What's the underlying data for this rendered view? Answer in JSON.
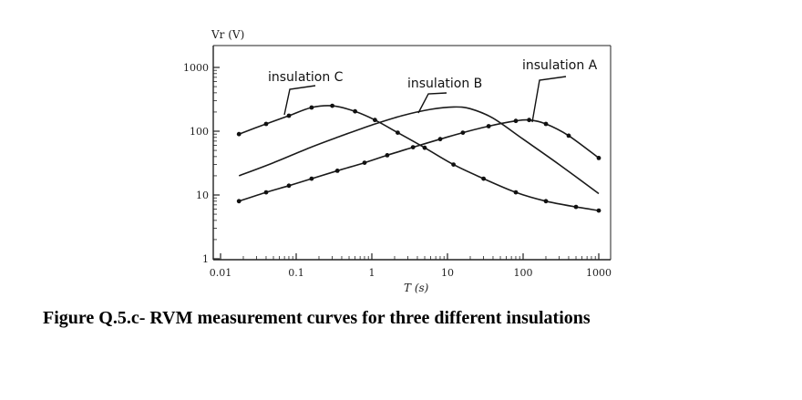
{
  "caption": "Figure  Q.5.c- RVM measurement  curves for three different insulations",
  "chart_data": {
    "type": "line",
    "xlabel": "T (s)",
    "ylabel": "Vr (V)",
    "xscale": "log",
    "yscale": "log",
    "xlim": [
      0.01,
      1000
    ],
    "ylim": [
      1,
      1000
    ],
    "xticks": [
      {
        "value": 0.01,
        "label": "0.01"
      },
      {
        "value": 0.1,
        "label": "0.1"
      },
      {
        "value": 1,
        "label": "1"
      },
      {
        "value": 10,
        "label": "10"
      },
      {
        "value": 100,
        "label": "100"
      },
      {
        "value": 1000,
        "label": "1000"
      }
    ],
    "yticks": [
      {
        "value": 1,
        "label": "1"
      },
      {
        "value": 10,
        "label": "10"
      },
      {
        "value": 100,
        "label": "100"
      },
      {
        "value": 1000,
        "label": "1000"
      }
    ],
    "grid": false,
    "series": [
      {
        "name": "insulation C",
        "markers": true,
        "x": [
          0.0175,
          0.04,
          0.08,
          0.16,
          0.3,
          0.6,
          1.1,
          2.2,
          5,
          12,
          30,
          80,
          200,
          500,
          1000
        ],
        "y": [
          90,
          130,
          175,
          235,
          250,
          205,
          150,
          95,
          55,
          30,
          18,
          11,
          8,
          6.5,
          5.7
        ]
      },
      {
        "name": "insulation B",
        "markers": false,
        "x": [
          0.0175,
          0.05,
          0.15,
          0.4,
          1,
          2.5,
          6,
          12,
          20,
          40,
          100,
          300,
          1000
        ],
        "y": [
          20,
          32,
          55,
          85,
          125,
          175,
          220,
          240,
          225,
          160,
          75,
          30,
          10.5
        ]
      },
      {
        "name": "insulation A",
        "markers": true,
        "x": [
          0.0175,
          0.04,
          0.08,
          0.16,
          0.35,
          0.8,
          1.6,
          3.5,
          8,
          16,
          35,
          80,
          120,
          200,
          400,
          1000
        ],
        "y": [
          8,
          11,
          14,
          18,
          24,
          32,
          42,
          56,
          75,
          95,
          120,
          145,
          150,
          130,
          85,
          38
        ]
      }
    ]
  }
}
